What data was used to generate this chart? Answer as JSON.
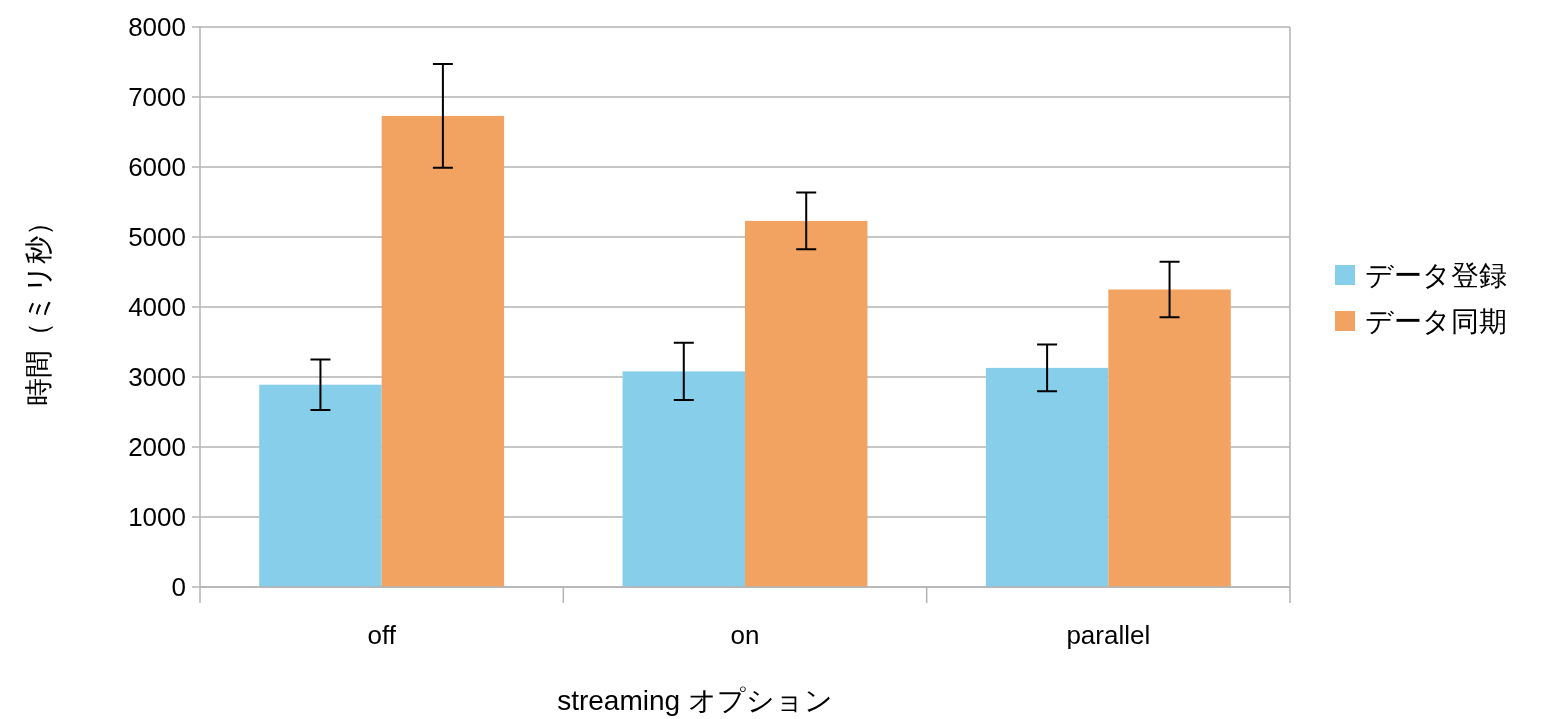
{
  "chart_data": {
    "type": "bar",
    "xlabel": "streaming オプション",
    "ylabel": "時間（ミリ秒）",
    "categories": [
      "off",
      "on",
      "parallel"
    ],
    "series": [
      {
        "name": "データ登録",
        "color": "#87ceeb",
        "values": [
          2890,
          3080,
          3130
        ],
        "errors": [
          360,
          410,
          335
        ]
      },
      {
        "name": "データ同期",
        "color": "#f2a361",
        "values": [
          6730,
          5230,
          4250
        ],
        "errors": [
          740,
          405,
          395
        ]
      }
    ],
    "ylim": [
      0,
      8000
    ],
    "yticks": [
      0,
      1000,
      2000,
      3000,
      4000,
      5000,
      6000,
      7000,
      8000
    ],
    "grid": "y",
    "legend": "right"
  }
}
